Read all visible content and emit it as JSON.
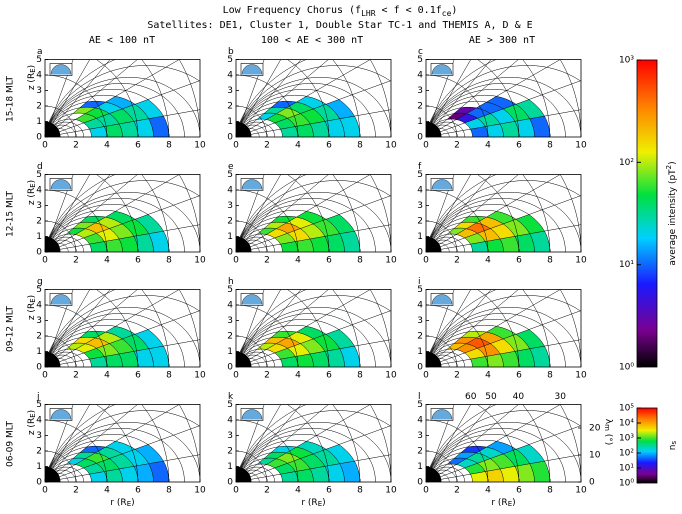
{
  "title_parts": [
    "Low Frequency Chorus (f",
    "LHR",
    " < f < 0.1f",
    "ce",
    ")"
  ],
  "subtitle": "Satellites: DE1, Cluster 1, Double Star TC-1 and THEMIS A, D & E",
  "column_labels": [
    {
      "text": "AE < 100 nT",
      "color": "#2020ff"
    },
    {
      "text": "100 < AE < 300 nT",
      "color": "#30e060"
    },
    {
      "text": "AE > 300 nT",
      "color": "#ff2020"
    }
  ],
  "row_labels": [
    "15-18 MLT",
    "12-15 MLT",
    "09-12 MLT",
    "06-09 MLT"
  ],
  "colorbars": [
    {
      "label_parts": [
        "average intensity (pT",
        "2",
        ")"
      ],
      "log": true,
      "ylim": [
        1,
        1000
      ],
      "yticks": [
        {
          "value": 1,
          "label": "10⁰"
        },
        {
          "value": 10,
          "label": "10¹"
        },
        {
          "value": 100,
          "label": "10²"
        },
        {
          "value": 1000,
          "label": "10³"
        }
      ]
    },
    {
      "label_parts": [
        "n",
        "s"
      ],
      "log": true,
      "ylim": [
        1,
        100000
      ],
      "yticks": [
        {
          "value": 1,
          "label": "10⁰"
        },
        {
          "value": 10,
          "label": "10¹"
        },
        {
          "value": 100,
          "label": "10²"
        },
        {
          "value": 1000,
          "label": "10³"
        },
        {
          "value": 10000,
          "label": "10⁴"
        },
        {
          "value": 100000,
          "label": "10⁵"
        }
      ]
    }
  ],
  "chart_data": [
    {
      "type": "heatmap",
      "label": "a",
      "colorbar": 0,
      "xlim": [
        0,
        10
      ],
      "xticks": [
        0,
        2,
        4,
        6,
        8,
        10
      ],
      "ylim": [
        0,
        5
      ],
      "yticks": [
        0,
        1,
        2,
        3,
        4,
        5
      ],
      "y_label_parts": [
        "z (R",
        "E",
        ")"
      ],
      "l_bins": [
        3,
        4,
        5,
        6,
        7,
        8
      ],
      "lat_bins": [
        0,
        10,
        20,
        30,
        40
      ],
      "values": [
        [
          20,
          30,
          60,
          null
        ],
        [
          40,
          30,
          50,
          80
        ],
        [
          30,
          40,
          20,
          10
        ],
        [
          20,
          30,
          15,
          null
        ],
        [
          10,
          20,
          null,
          null
        ]
      ]
    },
    {
      "type": "heatmap",
      "label": "b",
      "colorbar": 0,
      "xlim": [
        0,
        10
      ],
      "xticks": [
        0,
        2,
        4,
        6,
        8,
        10
      ],
      "ylim": [
        0,
        5
      ],
      "yticks": [
        0,
        1,
        2,
        3,
        4,
        5
      ],
      "l_bins": [
        3,
        4,
        5,
        6,
        7,
        8
      ],
      "lat_bins": [
        0,
        10,
        20,
        30,
        40
      ],
      "values": [
        [
          30,
          40,
          50,
          20
        ],
        [
          40,
          60,
          80,
          30
        ],
        [
          30,
          50,
          40,
          10
        ],
        [
          20,
          30,
          20,
          null
        ],
        [
          20,
          15,
          null,
          null
        ]
      ]
    },
    {
      "type": "heatmap",
      "label": "c",
      "colorbar": 0,
      "xlim": [
        0,
        10
      ],
      "xticks": [
        0,
        2,
        4,
        6,
        8,
        10
      ],
      "ylim": [
        0,
        5
      ],
      "yticks": [
        0,
        1,
        2,
        3,
        4,
        5
      ],
      "l_bins": [
        3,
        4,
        5,
        6,
        7,
        8
      ],
      "lat_bins": [
        0,
        10,
        20,
        30,
        40
      ],
      "values": [
        [
          10,
          20,
          5,
          2
        ],
        [
          20,
          30,
          10,
          3
        ],
        [
          30,
          20,
          10,
          null
        ],
        [
          20,
          40,
          10,
          null
        ],
        [
          10,
          30,
          null,
          null
        ]
      ]
    },
    {
      "type": "heatmap",
      "label": "d",
      "colorbar": 0,
      "xlim": [
        0,
        10
      ],
      "xticks": [
        0,
        2,
        4,
        6,
        8,
        10
      ],
      "ylim": [
        0,
        5
      ],
      "yticks": [
        0,
        1,
        2,
        3,
        4,
        5
      ],
      "y_label_parts": [
        "z (R",
        "E",
        ")"
      ],
      "l_bins": [
        3,
        4,
        5,
        6,
        7,
        8
      ],
      "lat_bins": [
        0,
        10,
        20,
        30,
        40
      ],
      "values": [
        [
          40,
          60,
          100,
          50
        ],
        [
          60,
          120,
          200,
          80
        ],
        [
          50,
          80,
          100,
          40
        ],
        [
          30,
          50,
          40,
          null
        ],
        [
          20,
          30,
          null,
          null
        ]
      ]
    },
    {
      "type": "heatmap",
      "label": "e",
      "colorbar": 0,
      "xlim": [
        0,
        10
      ],
      "xticks": [
        0,
        2,
        4,
        6,
        8,
        10
      ],
      "ylim": [
        0,
        5
      ],
      "yticks": [
        0,
        1,
        2,
        3,
        4,
        5
      ],
      "l_bins": [
        3,
        4,
        5,
        6,
        7,
        8
      ],
      "lat_bins": [
        0,
        10,
        20,
        30,
        40
      ],
      "values": [
        [
          50,
          80,
          150,
          60
        ],
        [
          60,
          150,
          250,
          100
        ],
        [
          50,
          100,
          120,
          50
        ],
        [
          40,
          60,
          50,
          null
        ],
        [
          30,
          40,
          null,
          null
        ]
      ]
    },
    {
      "type": "heatmap",
      "label": "f",
      "colorbar": 0,
      "xlim": [
        0,
        10
      ],
      "xticks": [
        0,
        2,
        4,
        6,
        8,
        10
      ],
      "ylim": [
        0,
        5
      ],
      "yticks": [
        0,
        1,
        2,
        3,
        4,
        5
      ],
      "l_bins": [
        3,
        4,
        5,
        6,
        7,
        8
      ],
      "lat_bins": [
        0,
        10,
        20,
        30,
        40
      ],
      "values": [
        [
          30,
          80,
          200,
          80
        ],
        [
          50,
          200,
          400,
          150
        ],
        [
          60,
          150,
          200,
          60
        ],
        [
          40,
          80,
          60,
          null
        ],
        [
          30,
          50,
          null,
          null
        ]
      ]
    },
    {
      "type": "heatmap",
      "label": "g",
      "colorbar": 0,
      "xlim": [
        0,
        10
      ],
      "xticks": [
        0,
        2,
        4,
        6,
        8,
        10
      ],
      "ylim": [
        0,
        5
      ],
      "yticks": [
        0,
        1,
        2,
        3,
        4,
        5
      ],
      "y_label_parts": [
        "z (R",
        "E",
        ")"
      ],
      "l_bins": [
        3,
        4,
        5,
        6,
        7,
        8
      ],
      "lat_bins": [
        0,
        10,
        20,
        30,
        40
      ],
      "values": [
        [
          30,
          50,
          120,
          100
        ],
        [
          40,
          80,
          200,
          150
        ],
        [
          40,
          60,
          100,
          40
        ],
        [
          20,
          40,
          30,
          null
        ],
        [
          20,
          20,
          null,
          null
        ]
      ]
    },
    {
      "type": "heatmap",
      "label": "h",
      "colorbar": 0,
      "xlim": [
        0,
        10
      ],
      "xticks": [
        0,
        2,
        4,
        6,
        8,
        10
      ],
      "ylim": [
        0,
        5
      ],
      "yticks": [
        0,
        1,
        2,
        3,
        4,
        5
      ],
      "l_bins": [
        3,
        4,
        5,
        6,
        7,
        8
      ],
      "lat_bins": [
        0,
        10,
        20,
        30,
        40
      ],
      "values": [
        [
          40,
          60,
          150,
          100
        ],
        [
          50,
          120,
          250,
          200
        ],
        [
          40,
          80,
          120,
          60
        ],
        [
          30,
          50,
          40,
          null
        ],
        [
          20,
          30,
          null,
          null
        ]
      ]
    },
    {
      "type": "heatmap",
      "label": "i",
      "colorbar": 0,
      "xlim": [
        0,
        10
      ],
      "xticks": [
        0,
        2,
        4,
        6,
        8,
        10
      ],
      "ylim": [
        0,
        5
      ],
      "yticks": [
        0,
        1,
        2,
        3,
        4,
        5
      ],
      "l_bins": [
        3,
        4,
        5,
        6,
        7,
        8
      ],
      "lat_bins": [
        0,
        10,
        20,
        30,
        40
      ],
      "values": [
        [
          60,
          150,
          300,
          200
        ],
        [
          80,
          300,
          500,
          300
        ],
        [
          60,
          150,
          250,
          100
        ],
        [
          40,
          80,
          60,
          null
        ],
        [
          30,
          40,
          null,
          null
        ]
      ]
    },
    {
      "type": "heatmap",
      "label": "j",
      "colorbar": 0,
      "xlim": [
        0,
        10
      ],
      "xticks": [
        0,
        2,
        4,
        6,
        8,
        10
      ],
      "ylim": [
        0,
        5
      ],
      "yticks": [
        0,
        1,
        2,
        3,
        4,
        5
      ],
      "y_label_parts": [
        "z (R",
        "E",
        ")"
      ],
      "x_label_parts": [
        "r (R",
        "E",
        ")"
      ],
      "l_bins": [
        3,
        4,
        5,
        6,
        7,
        8
      ],
      "lat_bins": [
        0,
        10,
        20,
        30,
        40
      ],
      "values": [
        [
          20,
          30,
          40,
          20
        ],
        [
          30,
          40,
          60,
          30
        ],
        [
          20,
          30,
          30,
          10
        ],
        [
          15,
          20,
          20,
          null
        ],
        [
          10,
          15,
          null,
          null
        ]
      ]
    },
    {
      "type": "heatmap",
      "label": "k",
      "colorbar": 0,
      "xlim": [
        0,
        10
      ],
      "xticks": [
        0,
        2,
        4,
        6,
        8,
        10
      ],
      "ylim": [
        0,
        5
      ],
      "yticks": [
        0,
        1,
        2,
        3,
        4,
        5
      ],
      "x_label_parts": [
        "r (R",
        "E",
        ")"
      ],
      "l_bins": [
        3,
        4,
        5,
        6,
        7,
        8
      ],
      "lat_bins": [
        0,
        10,
        20,
        30,
        40
      ],
      "values": [
        [
          30,
          40,
          60,
          30
        ],
        [
          40,
          60,
          80,
          40
        ],
        [
          30,
          40,
          50,
          20
        ],
        [
          20,
          30,
          25,
          null
        ],
        [
          15,
          20,
          null,
          null
        ]
      ]
    },
    {
      "type": "heatmap",
      "label": "l",
      "colorbar": 1,
      "xlim": [
        0,
        10
      ],
      "xticks": [
        0,
        2,
        4,
        6,
        8,
        10
      ],
      "ylim": [
        0,
        5
      ],
      "yticks": [
        0,
        1,
        2,
        3,
        4,
        5
      ],
      "x_label_parts": [
        "r (R",
        "E",
        ")"
      ],
      "y2_label_parts": [
        "λ",
        "m",
        " (°)"
      ],
      "y2lim": [
        0,
        28.7
      ],
      "y2ticks": [
        0,
        10,
        20
      ],
      "lat_labels": [
        60,
        50,
        40,
        30
      ],
      "l_bins": [
        3,
        4,
        5,
        6,
        7,
        8
      ],
      "lat_bins": [
        0,
        10,
        20,
        30,
        40
      ],
      "values": [
        [
          3000,
          800,
          200,
          50
        ],
        [
          5000,
          1500,
          300,
          80
        ],
        [
          3000,
          1000,
          200,
          30
        ],
        [
          1500,
          500,
          80,
          null
        ],
        [
          800,
          200,
          null,
          null
        ]
      ]
    }
  ]
}
